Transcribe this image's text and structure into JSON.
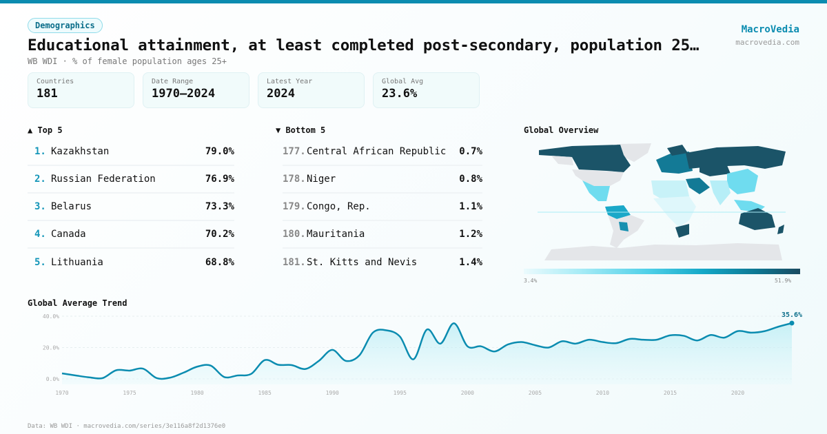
{
  "header": {
    "category": "Demographics",
    "title": "Educational attainment, at least completed post-secondary, population 25…",
    "subtitle": "WB WDI · % of female population ages 25+"
  },
  "brand": {
    "name": "MacroVedia",
    "url": "macrovedia.com"
  },
  "stats": [
    {
      "label": "Countries",
      "value": "181"
    },
    {
      "label": "Date Range",
      "value": "1970–2024"
    },
    {
      "label": "Latest Year",
      "value": "2024"
    },
    {
      "label": "Global Avg",
      "value": "23.6%"
    }
  ],
  "top": {
    "heading": "▲ Top 5",
    "items": [
      {
        "rank": "1.",
        "name": "Kazakhstan",
        "value": "79.0%"
      },
      {
        "rank": "2.",
        "name": "Russian Federation",
        "value": "76.9%"
      },
      {
        "rank": "3.",
        "name": "Belarus",
        "value": "73.3%"
      },
      {
        "rank": "4.",
        "name": "Canada",
        "value": "70.2%"
      },
      {
        "rank": "5.",
        "name": "Lithuania",
        "value": "68.8%"
      }
    ]
  },
  "bottom": {
    "heading": "▼ Bottom 5",
    "items": [
      {
        "rank": "177.",
        "name": "Central African Republic",
        "value": "0.7%"
      },
      {
        "rank": "178.",
        "name": "Niger",
        "value": "0.8%"
      },
      {
        "rank": "179.",
        "name": "Congo, Rep.",
        "value": "1.1%"
      },
      {
        "rank": "180.",
        "name": "Mauritania",
        "value": "1.2%"
      },
      {
        "rank": "181.",
        "name": "St. Kitts and Nevis",
        "value": "1.4%"
      }
    ]
  },
  "map": {
    "heading": "Global Overview",
    "legend_min": "3.4%",
    "legend_max": "51.9%",
    "colors": {
      "low": "#ebfafd",
      "mid": "#4fd0e8",
      "high": "#1a4a60",
      "nodata": "#e4e6e9"
    }
  },
  "chart_data": {
    "type": "area",
    "title": "Global Average Trend",
    "x": [
      1970,
      1971,
      1972,
      1973,
      1974,
      1975,
      1976,
      1977,
      1978,
      1979,
      1980,
      1981,
      1982,
      1983,
      1984,
      1985,
      1986,
      1987,
      1988,
      1989,
      1990,
      1991,
      1992,
      1993,
      1994,
      1995,
      1996,
      1997,
      1998,
      1999,
      2000,
      2001,
      2002,
      2003,
      2004,
      2005,
      2006,
      2007,
      2008,
      2009,
      2010,
      2011,
      2012,
      2013,
      2014,
      2015,
      2016,
      2017,
      2018,
      2019,
      2020,
      2021,
      2022,
      2023,
      2024
    ],
    "values": [
      3.5,
      2.2,
      1.0,
      0.5,
      5.5,
      5.3,
      6.5,
      0.5,
      0.8,
      4.0,
      7.8,
      8.5,
      1.2,
      2.2,
      3.2,
      12.0,
      9.0,
      8.8,
      6.3,
      11.5,
      18.5,
      11.5,
      15.0,
      29.5,
      31.0,
      27.0,
      12.5,
      31.5,
      22.5,
      35.5,
      20.8,
      20.8,
      17.5,
      22.0,
      23.5,
      21.5,
      20.0,
      24.0,
      22.5,
      25.0,
      23.5,
      22.8,
      25.5,
      25.0,
      25.0,
      27.8,
      27.5,
      24.5,
      28.0,
      26.3,
      30.5,
      29.5,
      30.5,
      33.3,
      35.6
    ],
    "ylim": [
      0,
      40
    ],
    "yticks": [
      "0.0%",
      "20.0%",
      "40.0%"
    ],
    "xticks": [
      "1970",
      "1975",
      "1980",
      "1985",
      "1990",
      "1995",
      "2000",
      "2005",
      "2010",
      "2015",
      "2020"
    ],
    "last_label": "35.6%",
    "color": "#0b8cb0",
    "grid": true
  },
  "footer": "Data: WB WDI · macrovedia.com/series/3e116a8f2d1376e0"
}
